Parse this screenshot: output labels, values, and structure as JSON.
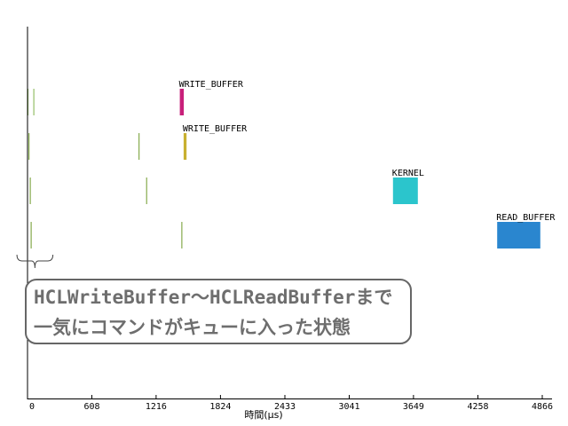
{
  "chart_data": {
    "type": "timeline",
    "xlabel": "時間(μs)",
    "xlim": [
      0,
      4866
    ],
    "ticks": [
      0,
      608,
      1216,
      1824,
      2433,
      3041,
      3649,
      4258,
      4866
    ],
    "grid": false,
    "legend": "none",
    "lanes": [
      {
        "events": [
          {
            "start": 0,
            "end": 6,
            "color": "#7fb24a"
          },
          {
            "start": 55,
            "end": 61,
            "color": "#7fb24a"
          },
          {
            "start": 1440,
            "end": 1478,
            "color": "#c8207a",
            "label": "WRITE_BUFFER"
          }
        ]
      },
      {
        "events": [
          {
            "start": 10,
            "end": 16,
            "color": "#6e9a2a"
          },
          {
            "start": 1050,
            "end": 1056,
            "color": "#6e9a2a"
          },
          {
            "start": 1476,
            "end": 1504,
            "color": "#c8b030",
            "label": "WRITE_BUFFER"
          }
        ]
      },
      {
        "events": [
          {
            "start": 22,
            "end": 28,
            "color": "#6e9a2a"
          },
          {
            "start": 1122,
            "end": 1128,
            "color": "#6e9a2a"
          },
          {
            "start": 3455,
            "end": 3690,
            "color": "#2bc5cc",
            "label": "KERNEL"
          }
        ]
      },
      {
        "events": [
          {
            "start": 30,
            "end": 36,
            "color": "#6e9a2a"
          },
          {
            "start": 1455,
            "end": 1461,
            "color": "#6e9a2a"
          },
          {
            "start": 4440,
            "end": 4848,
            "color": "#2a86cf",
            "label": "READ_BUFFER"
          }
        ]
      }
    ],
    "annotation": {
      "lines": [
        "HCLWriteBuffer～HCLReadBufferまで",
        "一気にコマンドがキューに入った状態"
      ],
      "bracket_range": [
        -100,
        240
      ]
    }
  }
}
